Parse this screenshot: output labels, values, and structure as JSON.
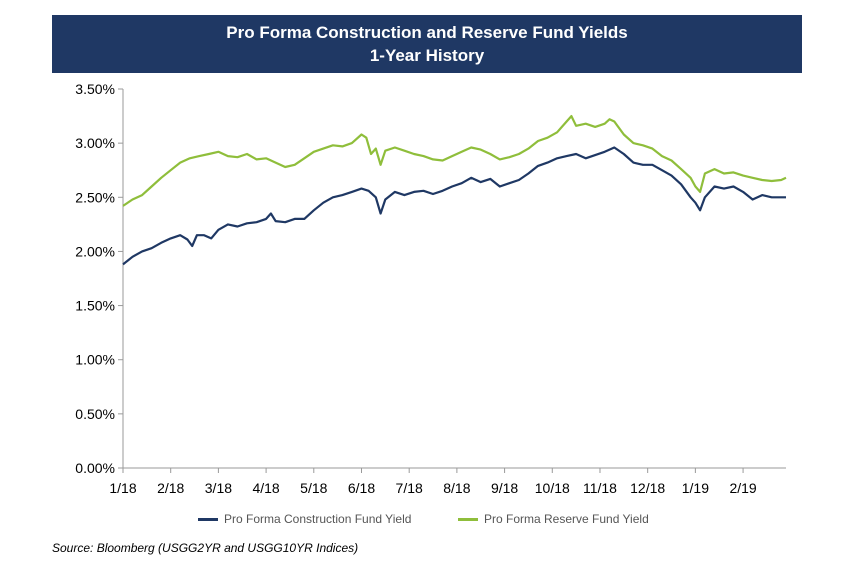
{
  "chart_data": {
    "type": "line",
    "title": "Pro Forma Construction and Reserve Fund Yields",
    "subtitle": "1-Year History",
    "colors": {
      "title_background": "#1f3864",
      "construction": "#1f3864",
      "reserve": "#8fbe3b"
    },
    "ylim": [
      0,
      3.5
    ],
    "yticks": [
      "0.00%",
      "0.50%",
      "1.00%",
      "1.50%",
      "2.00%",
      "2.50%",
      "3.00%",
      "3.50%"
    ],
    "categories": [
      "1/18",
      "2/18",
      "3/18",
      "4/18",
      "5/18",
      "6/18",
      "7/18",
      "8/18",
      "9/18",
      "10/18",
      "11/18",
      "12/18",
      "1/19",
      "2/19"
    ],
    "x_range": [
      0,
      13.9
    ],
    "series": [
      {
        "name": "Pro Forma Construction Fund Yield",
        "color": "#1f3864",
        "points": [
          [
            0,
            1.88
          ],
          [
            0.2,
            1.95
          ],
          [
            0.4,
            2.0
          ],
          [
            0.6,
            2.03
          ],
          [
            0.8,
            2.08
          ],
          [
            1.0,
            2.12
          ],
          [
            1.2,
            2.15
          ],
          [
            1.35,
            2.11
          ],
          [
            1.45,
            2.05
          ],
          [
            1.55,
            2.15
          ],
          [
            1.7,
            2.15
          ],
          [
            1.85,
            2.12
          ],
          [
            2.0,
            2.2
          ],
          [
            2.2,
            2.25
          ],
          [
            2.4,
            2.23
          ],
          [
            2.6,
            2.26
          ],
          [
            2.8,
            2.27
          ],
          [
            3.0,
            2.3
          ],
          [
            3.1,
            2.35
          ],
          [
            3.2,
            2.28
          ],
          [
            3.4,
            2.27
          ],
          [
            3.6,
            2.3
          ],
          [
            3.8,
            2.3
          ],
          [
            4.0,
            2.38
          ],
          [
            4.2,
            2.45
          ],
          [
            4.4,
            2.5
          ],
          [
            4.6,
            2.52
          ],
          [
            4.8,
            2.55
          ],
          [
            5.0,
            2.58
          ],
          [
            5.15,
            2.56
          ],
          [
            5.3,
            2.5
          ],
          [
            5.4,
            2.35
          ],
          [
            5.5,
            2.48
          ],
          [
            5.7,
            2.55
          ],
          [
            5.9,
            2.52
          ],
          [
            6.1,
            2.55
          ],
          [
            6.3,
            2.56
          ],
          [
            6.5,
            2.53
          ],
          [
            6.7,
            2.56
          ],
          [
            6.9,
            2.6
          ],
          [
            7.1,
            2.63
          ],
          [
            7.3,
            2.68
          ],
          [
            7.5,
            2.64
          ],
          [
            7.7,
            2.67
          ],
          [
            7.9,
            2.6
          ],
          [
            8.1,
            2.63
          ],
          [
            8.3,
            2.66
          ],
          [
            8.5,
            2.72
          ],
          [
            8.7,
            2.79
          ],
          [
            8.9,
            2.82
          ],
          [
            9.1,
            2.86
          ],
          [
            9.3,
            2.88
          ],
          [
            9.5,
            2.9
          ],
          [
            9.7,
            2.86
          ],
          [
            9.9,
            2.89
          ],
          [
            10.1,
            2.92
          ],
          [
            10.3,
            2.96
          ],
          [
            10.5,
            2.9
          ],
          [
            10.7,
            2.82
          ],
          [
            10.9,
            2.8
          ],
          [
            11.1,
            2.8
          ],
          [
            11.3,
            2.75
          ],
          [
            11.5,
            2.7
          ],
          [
            11.7,
            2.62
          ],
          [
            11.9,
            2.5
          ],
          [
            12.0,
            2.45
          ],
          [
            12.1,
            2.38
          ],
          [
            12.2,
            2.5
          ],
          [
            12.4,
            2.6
          ],
          [
            12.6,
            2.58
          ],
          [
            12.8,
            2.6
          ],
          [
            13.0,
            2.55
          ],
          [
            13.2,
            2.48
          ],
          [
            13.4,
            2.52
          ],
          [
            13.6,
            2.5
          ],
          [
            13.8,
            2.5
          ],
          [
            13.9,
            2.5
          ]
        ]
      },
      {
        "name": "Pro Forma Reserve Fund Yield",
        "color": "#8fbe3b",
        "points": [
          [
            0,
            2.42
          ],
          [
            0.2,
            2.48
          ],
          [
            0.4,
            2.52
          ],
          [
            0.6,
            2.6
          ],
          [
            0.8,
            2.68
          ],
          [
            1.0,
            2.75
          ],
          [
            1.2,
            2.82
          ],
          [
            1.4,
            2.86
          ],
          [
            1.6,
            2.88
          ],
          [
            1.8,
            2.9
          ],
          [
            2.0,
            2.92
          ],
          [
            2.2,
            2.88
          ],
          [
            2.4,
            2.87
          ],
          [
            2.6,
            2.9
          ],
          [
            2.8,
            2.85
          ],
          [
            3.0,
            2.86
          ],
          [
            3.2,
            2.82
          ],
          [
            3.4,
            2.78
          ],
          [
            3.6,
            2.8
          ],
          [
            3.8,
            2.86
          ],
          [
            4.0,
            2.92
          ],
          [
            4.2,
            2.95
          ],
          [
            4.4,
            2.98
          ],
          [
            4.6,
            2.97
          ],
          [
            4.8,
            3.0
          ],
          [
            5.0,
            3.08
          ],
          [
            5.1,
            3.05
          ],
          [
            5.2,
            2.9
          ],
          [
            5.3,
            2.95
          ],
          [
            5.4,
            2.8
          ],
          [
            5.5,
            2.93
          ],
          [
            5.7,
            2.96
          ],
          [
            5.9,
            2.93
          ],
          [
            6.1,
            2.9
          ],
          [
            6.3,
            2.88
          ],
          [
            6.5,
            2.85
          ],
          [
            6.7,
            2.84
          ],
          [
            6.9,
            2.88
          ],
          [
            7.1,
            2.92
          ],
          [
            7.3,
            2.96
          ],
          [
            7.5,
            2.94
          ],
          [
            7.7,
            2.9
          ],
          [
            7.9,
            2.85
          ],
          [
            8.1,
            2.87
          ],
          [
            8.3,
            2.9
          ],
          [
            8.5,
            2.95
          ],
          [
            8.7,
            3.02
          ],
          [
            8.9,
            3.05
          ],
          [
            9.1,
            3.1
          ],
          [
            9.3,
            3.2
          ],
          [
            9.4,
            3.25
          ],
          [
            9.5,
            3.16
          ],
          [
            9.7,
            3.18
          ],
          [
            9.9,
            3.15
          ],
          [
            10.1,
            3.18
          ],
          [
            10.2,
            3.22
          ],
          [
            10.3,
            3.2
          ],
          [
            10.5,
            3.08
          ],
          [
            10.7,
            3.0
          ],
          [
            10.9,
            2.98
          ],
          [
            11.1,
            2.95
          ],
          [
            11.3,
            2.88
          ],
          [
            11.5,
            2.84
          ],
          [
            11.7,
            2.76
          ],
          [
            11.9,
            2.68
          ],
          [
            12.0,
            2.6
          ],
          [
            12.1,
            2.55
          ],
          [
            12.2,
            2.72
          ],
          [
            12.4,
            2.76
          ],
          [
            12.6,
            2.72
          ],
          [
            12.8,
            2.73
          ],
          [
            13.0,
            2.7
          ],
          [
            13.2,
            2.68
          ],
          [
            13.4,
            2.66
          ],
          [
            13.6,
            2.65
          ],
          [
            13.8,
            2.66
          ],
          [
            13.9,
            2.68
          ]
        ]
      }
    ],
    "legend_position": "bottom",
    "grid": false
  },
  "source": "Source: Bloomberg (USGG2YR  and USGG10YR Indices)"
}
